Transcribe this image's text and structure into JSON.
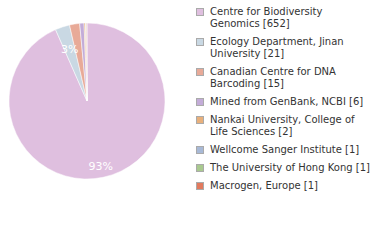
{
  "chart_data": {
    "type": "pie",
    "categories": [
      "Centre for Biodiversity Genomics [652]",
      "Ecology Department, Jinan University [21]",
      "Canadian Centre for DNA Barcoding [15]",
      "Mined from GenBank, NCBI [6]",
      "Nankai University, College of Life Sciences [2]",
      "Wellcome Sanger Institute [1]",
      "The University of Hong Kong [1]",
      "Macrogen, Europe [1]"
    ],
    "values": [
      93.3,
      3.0,
      2.1,
      0.9,
      0.3,
      0.1,
      0.1,
      0.1
    ],
    "value_labels": [
      "93%",
      "3%",
      null,
      null,
      null,
      null,
      null,
      null
    ],
    "data_labels": true,
    "colors": [
      "#dfbfdf",
      "#c9d8e3",
      "#e8aa98",
      "#c3acd8",
      "#e8b07c",
      "#a8b9d6",
      "#a9c98f",
      "#e27a5e"
    ],
    "legend": "right"
  }
}
